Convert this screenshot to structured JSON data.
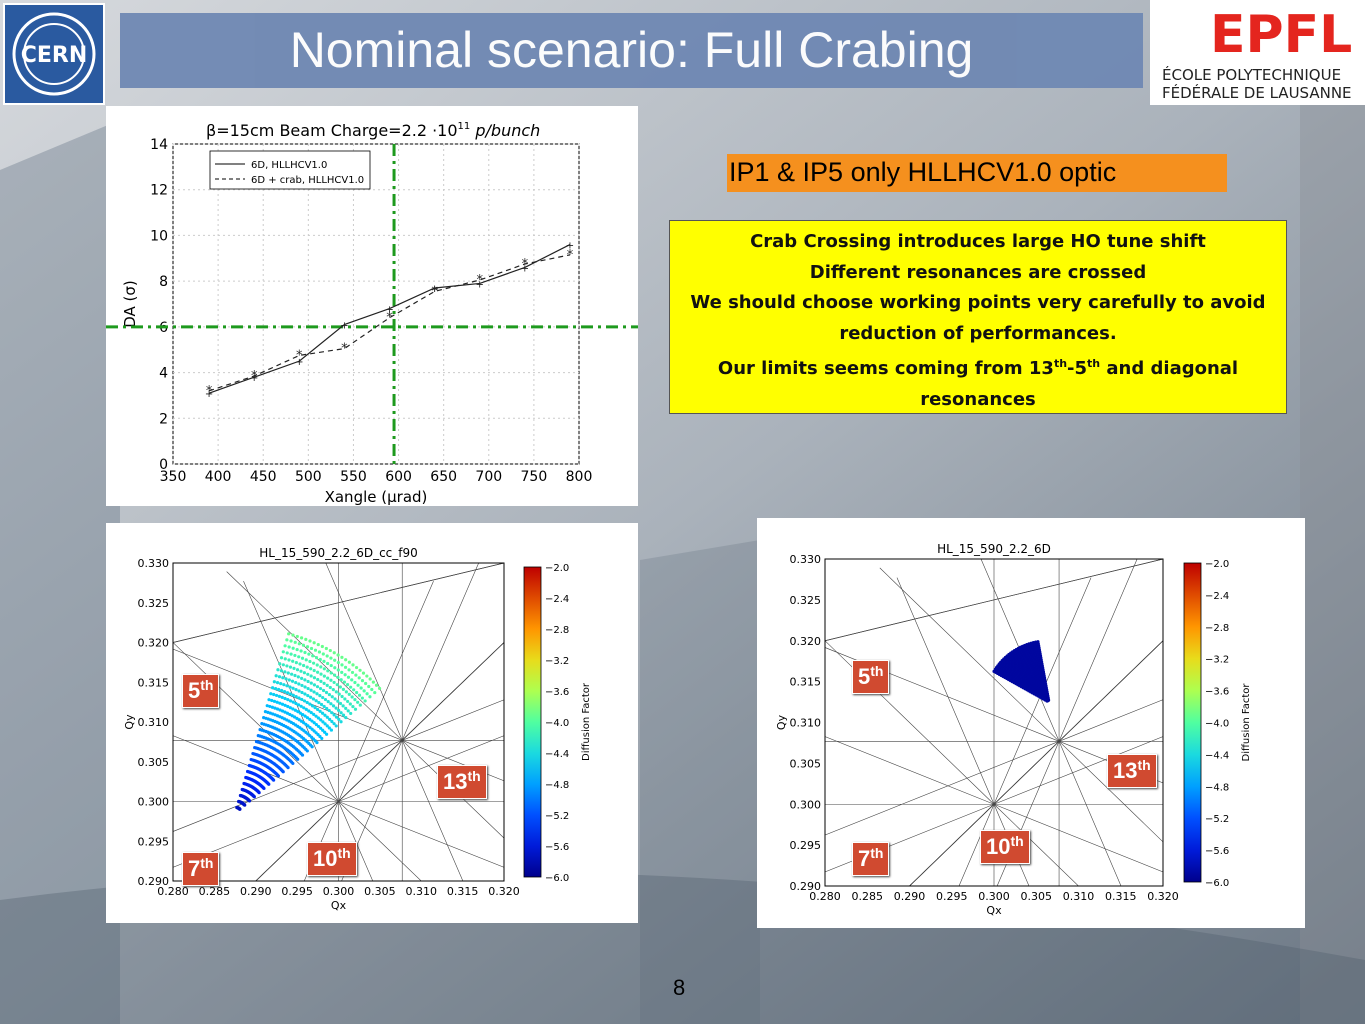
{
  "title": "Nominal scenario: Full Crabing",
  "logos": {
    "left": "CERN",
    "right_brand": "EPFL",
    "right_line1": "ÉCOLE POLYTECHNIQUE",
    "right_line2": "FÉDÉRALE DE LAUSANNE"
  },
  "subtitle": "IP1 & IP5 only HLLHCV1.0 optic",
  "notes": {
    "line1": "Crab Crossing introduces large HO tune shift",
    "line2": "Different resonances are crossed",
    "line3": "We should choose working points very carefully to avoid",
    "line4": "reduction of performances.",
    "line5_pre": "Our limits seems coming from 13",
    "line5_sup1": "th",
    "line5_mid": "-5",
    "line5_sup2": "th",
    "line5_post": " and diagonal",
    "line6": "resonances"
  },
  "page_number": "8",
  "badges": {
    "fifth": "5",
    "seventh": "7",
    "tenth": "10",
    "thirteenth": "13",
    "suffix": "th"
  },
  "chart_data": [
    {
      "type": "line",
      "title": "β=15cm  Beam Charge=2.2·10¹¹ p/bunch",
      "title_beta": "β=15cm  Beam Charge=2.2 ·10",
      "title_exp": "11",
      "title_unit": " p/bunch",
      "xlabel": "Xangle (μrad)",
      "ylabel": "DA (σ)",
      "xlim": [
        350,
        800
      ],
      "ylim": [
        0,
        14
      ],
      "xticks": [
        350,
        400,
        450,
        500,
        550,
        600,
        650,
        700,
        750,
        800
      ],
      "yticks": [
        0,
        2,
        4,
        6,
        8,
        10,
        12,
        14
      ],
      "legend_position": "top-left",
      "series": [
        {
          "name": "6D, HLLHCV1.0",
          "style": "solid",
          "color": "#222222",
          "x": [
            390,
            440,
            490,
            540,
            590,
            640,
            690,
            740,
            790
          ],
          "y": [
            3.1,
            3.8,
            4.5,
            6.1,
            6.8,
            7.7,
            7.9,
            8.6,
            9.6
          ]
        },
        {
          "name": "6D + crab, HLLHCV1.0",
          "style": "dashed",
          "color": "#222222",
          "x": [
            390,
            440,
            490,
            540,
            590,
            640,
            690,
            740,
            790
          ],
          "y": [
            3.2,
            3.85,
            4.75,
            5.05,
            6.4,
            7.55,
            8.05,
            8.75,
            9.15
          ]
        }
      ],
      "annotations": [
        {
          "type": "hline",
          "y": 6,
          "style": "dash-dot",
          "color": "#1e9a1e"
        },
        {
          "type": "vline",
          "x": 595,
          "style": "dash-dot",
          "color": "#1e9a1e"
        }
      ]
    },
    {
      "type": "scatter",
      "title": "HL_15_590_2.2_6D_cc_f90",
      "xlabel": "Qx",
      "ylabel": "Qy",
      "xlim": [
        0.28,
        0.32
      ],
      "ylim": [
        0.29,
        0.33
      ],
      "xticks": [
        "0.280",
        "0.285",
        "0.290",
        "0.295",
        "0.300",
        "0.305",
        "0.310",
        "0.315",
        "0.320"
      ],
      "yticks": [
        "0.290",
        "0.295",
        "0.300",
        "0.305",
        "0.310",
        "0.315",
        "0.320",
        "0.325",
        "0.330"
      ],
      "colorbar_label": "Diffusion Factor",
      "colorbar_ticks": [
        "−2.0",
        "−2.4",
        "−2.8",
        "−3.2",
        "−3.6",
        "−4.0",
        "−4.4",
        "−4.8",
        "−5.2",
        "−5.6",
        "−6.0"
      ],
      "colorbar_range": [
        -6.0,
        -2.0
      ],
      "footprint": {
        "apex": [
          0.2875,
          0.2985
        ],
        "r_max": 0.0235,
        "angle_from_deg": 42,
        "angle_to_deg": 74,
        "color_apex": -5.8,
        "color_outer": -3.9
      }
    },
    {
      "type": "scatter",
      "title": "HL_15_590_2.2_6D",
      "xlabel": "Qx",
      "ylabel": "Qy",
      "xlim": [
        0.28,
        0.32
      ],
      "ylim": [
        0.29,
        0.33
      ],
      "xticks": [
        "0.280",
        "0.285",
        "0.290",
        "0.295",
        "0.300",
        "0.305",
        "0.310",
        "0.315",
        "0.320"
      ],
      "yticks": [
        "0.290",
        "0.295",
        "0.300",
        "0.305",
        "0.310",
        "0.315",
        "0.320",
        "0.325",
        "0.330"
      ],
      "colorbar_label": "Diffusion Factor",
      "colorbar_ticks": [
        "−2.0",
        "−2.4",
        "−2.8",
        "−3.2",
        "−3.6",
        "−4.0",
        "−4.4",
        "−4.8",
        "−5.2",
        "−5.6",
        "−6.0"
      ],
      "colorbar_range": [
        -6.0,
        -2.0
      ],
      "footprint": {
        "apex": [
          0.3065,
          0.3125
        ],
        "r_max": 0.0075,
        "angle_from_deg": 100,
        "angle_to_deg": 150,
        "color_apex": -5.9,
        "color_outer": -5.9
      }
    }
  ]
}
